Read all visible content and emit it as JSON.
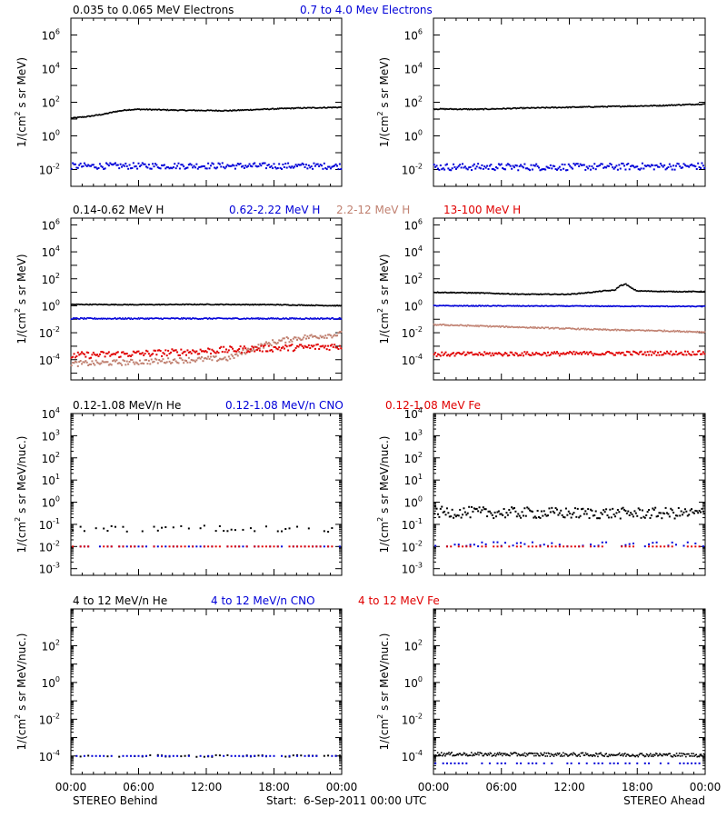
{
  "colors": {
    "black": "#000000",
    "blue": "#0000d8",
    "tan": "#c08070",
    "red": "#e00000"
  },
  "footer": {
    "left": "STEREO Behind",
    "center": "Start:  6-Sep-2011 00:00 UTC",
    "right": "STEREO Ahead"
  },
  "chart_data": [
    {
      "type": "scatter",
      "row": "electrons",
      "yscale": "log",
      "ylim_exp": [
        -3,
        7
      ],
      "ylabel_main": "1/(cm",
      "ylabel_tail": " s sr MeV)",
      "legend": [
        {
          "text": "0.035 to 0.065 MeV Electrons",
          "color": "black"
        },
        {
          "text": "0.7 to 4.0 Mev Electrons",
          "color": "blue"
        }
      ],
      "x_ticks": [
        "00:00",
        "06:00",
        "12:00",
        "18:00",
        "00:00"
      ],
      "y_ticks": [
        {
          "exp": 6,
          "label": "6"
        },
        {
          "exp": 4,
          "label": "4"
        },
        {
          "exp": 2,
          "label": "2"
        },
        {
          "exp": 0,
          "label": "0"
        },
        {
          "exp": -2,
          "label": "-2"
        }
      ],
      "panels": [
        {
          "name": "STEREO Behind",
          "series": [
            {
              "color": "black",
              "style": "dense",
              "noise": 0.03,
              "x": [
                0,
                1.5,
                3,
                4,
                5,
                6,
                8,
                10,
                14,
                17,
                20,
                24
              ],
              "logy": [
                1.05,
                1.15,
                1.3,
                1.45,
                1.55,
                1.58,
                1.55,
                1.52,
                1.5,
                1.58,
                1.65,
                1.7
              ]
            },
            {
              "color": "blue",
              "style": "scatter",
              "noise": 0.18,
              "x": [
                0,
                12,
                24
              ],
              "logy": [
                -1.8,
                -1.78,
                -1.8
              ]
            }
          ]
        },
        {
          "name": "STEREO Ahead",
          "series": [
            {
              "color": "black",
              "style": "dense",
              "noise": 0.03,
              "x": [
                0,
                4,
                8,
                12,
                16,
                20,
                24
              ],
              "logy": [
                1.6,
                1.58,
                1.65,
                1.7,
                1.75,
                1.8,
                1.9
              ]
            },
            {
              "color": "blue",
              "style": "scatter",
              "noise": 0.2,
              "x": [
                0,
                12,
                24
              ],
              "logy": [
                -1.85,
                -1.85,
                -1.8
              ]
            }
          ]
        }
      ]
    },
    {
      "type": "scatter",
      "row": "protons",
      "yscale": "log",
      "ylim_exp": [
        -5.5,
        6.5
      ],
      "ylabel_main": "1/(cm",
      "ylabel_tail": " s sr MeV)",
      "legend": [
        {
          "text": "0.14-0.62 MeV H",
          "color": "black"
        },
        {
          "text": "0.62-2.22 MeV H",
          "color": "blue"
        },
        {
          "text": "2.2-12 MeV H",
          "color": "tan"
        },
        {
          "text": "13-100 MeV H",
          "color": "red"
        }
      ],
      "x_ticks": [
        "00:00",
        "06:00",
        "12:00",
        "18:00",
        "00:00"
      ],
      "y_ticks": [
        {
          "exp": 6,
          "label": "6"
        },
        {
          "exp": 4,
          "label": "4"
        },
        {
          "exp": 2,
          "label": "2"
        },
        {
          "exp": 0,
          "label": "0"
        },
        {
          "exp": -2,
          "label": "-2"
        },
        {
          "exp": -4,
          "label": "-4"
        }
      ],
      "panels": [
        {
          "name": "STEREO Behind",
          "series": [
            {
              "color": "black",
              "style": "dense",
              "noise": 0.03,
              "x": [
                0,
                6,
                12,
                18,
                24
              ],
              "logy": [
                0.1,
                0.08,
                0.1,
                0.08,
                0.0
              ]
            },
            {
              "color": "blue",
              "style": "dense",
              "noise": 0.05,
              "x": [
                0,
                24
              ],
              "logy": [
                -0.95,
                -0.95
              ]
            },
            {
              "color": "tan",
              "style": "scatter",
              "noise": 0.2,
              "x": [
                0,
                5,
                11,
                14,
                16,
                18,
                20,
                24
              ],
              "logy": [
                -4.3,
                -4.2,
                -4.0,
                -3.9,
                -3.2,
                -2.7,
                -2.4,
                -2.1
              ]
            },
            {
              "color": "red",
              "style": "scatter",
              "noise": 0.25,
              "x": [
                0,
                8,
                16,
                24
              ],
              "logy": [
                -3.7,
                -3.5,
                -3.2,
                -3.0
              ]
            }
          ]
        },
        {
          "name": "STEREO Ahead",
          "series": [
            {
              "color": "black",
              "style": "dense",
              "noise": 0.03,
              "x": [
                0,
                4,
                8,
                12,
                14,
                15,
                16,
                16.5,
                17,
                17.5,
                18,
                21,
                24
              ],
              "logy": [
                1.0,
                0.95,
                0.85,
                0.85,
                1.0,
                1.1,
                1.15,
                1.5,
                1.6,
                1.3,
                1.1,
                1.05,
                1.05
              ]
            },
            {
              "color": "blue",
              "style": "dense",
              "noise": 0.03,
              "x": [
                0,
                24
              ],
              "logy": [
                0.0,
                -0.05
              ]
            },
            {
              "color": "tan",
              "style": "dense",
              "noise": 0.05,
              "x": [
                0,
                4,
                8,
                12,
                16,
                20,
                24
              ],
              "logy": [
                -1.4,
                -1.5,
                -1.6,
                -1.7,
                -1.8,
                -1.85,
                -1.95
              ]
            },
            {
              "color": "red",
              "style": "scatter",
              "noise": 0.15,
              "x": [
                0,
                12,
                24
              ],
              "logy": [
                -3.6,
                -3.55,
                -3.5
              ]
            }
          ]
        }
      ]
    },
    {
      "type": "scatter",
      "row": "heavy-low",
      "yscale": "log",
      "ylim_exp": [
        -3.3,
        4
      ],
      "ylabel_main": "1/(cm",
      "ylabel_tail": " s sr MeV/nuc.)",
      "legend": [
        {
          "text": "0.12-1.08 MeV/n He",
          "color": "black"
        },
        {
          "text": "0.12-1.08 MeV/n CNO",
          "color": "blue"
        },
        {
          "text": "0.12-1.08 MeV Fe",
          "color": "red"
        }
      ],
      "x_ticks": [
        "00:00",
        "06:00",
        "12:00",
        "18:00",
        "00:00"
      ],
      "y_ticks": [
        {
          "exp": 4,
          "label": "4"
        },
        {
          "exp": 3,
          "label": "3"
        },
        {
          "exp": 2,
          "label": "2"
        },
        {
          "exp": 1,
          "label": "1"
        },
        {
          "exp": 0,
          "label": "0"
        },
        {
          "exp": -1,
          "label": "-1"
        },
        {
          "exp": -2,
          "label": "-2"
        },
        {
          "exp": -3,
          "label": "-3"
        }
      ],
      "panels": [
        {
          "name": "STEREO Behind",
          "series": [
            {
              "color": "black",
              "style": "sparse",
              "noise": 0.15,
              "x": [
                0,
                24
              ],
              "logy": [
                -1.2,
                -1.2
              ]
            },
            {
              "color": "blue",
              "style": "sparse",
              "noise": 0.0,
              "x": [
                0,
                24
              ],
              "logy": [
                -2.0,
                -2.0
              ]
            },
            {
              "color": "red",
              "style": "sparse",
              "noise": 0.0,
              "x": [
                0,
                24
              ],
              "logy": [
                -2.0,
                -2.0
              ]
            }
          ]
        },
        {
          "name": "STEREO Ahead",
          "series": [
            {
              "color": "black",
              "style": "scatter",
              "noise": 0.25,
              "x": [
                0,
                12,
                24
              ],
              "logy": [
                -0.45,
                -0.5,
                -0.5
              ]
            },
            {
              "color": "blue",
              "style": "sparse",
              "noise": 0.1,
              "x": [
                0,
                24
              ],
              "logy": [
                -1.9,
                -1.9
              ]
            },
            {
              "color": "red",
              "style": "sparse",
              "noise": 0.0,
              "x": [
                0,
                24
              ],
              "logy": [
                -2.0,
                -2.0
              ]
            }
          ]
        }
      ]
    },
    {
      "type": "scatter",
      "row": "heavy-high",
      "yscale": "log",
      "ylim_exp": [
        -5,
        4
      ],
      "ylabel_main": "1/(cm",
      "ylabel_tail": " s sr MeV/nuc.)",
      "legend": [
        {
          "text": "4 to 12 MeV/n He",
          "color": "black"
        },
        {
          "text": "4 to 12 MeV/n CNO",
          "color": "blue"
        },
        {
          "text": "4 to 12 MeV Fe",
          "color": "red"
        }
      ],
      "x_ticks": [
        "00:00",
        "06:00",
        "12:00",
        "18:00",
        "00:00"
      ],
      "y_ticks": [
        {
          "exp": 2,
          "label": "2"
        },
        {
          "exp": 0,
          "label": "0"
        },
        {
          "exp": -2,
          "label": "-2"
        },
        {
          "exp": -4,
          "label": "-4"
        }
      ],
      "panels": [
        {
          "name": "STEREO Behind",
          "series": [
            {
              "color": "black",
              "style": "sparse",
              "noise": 0.05,
              "x": [
                0,
                24
              ],
              "logy": [
                -4.0,
                -4.0
              ]
            },
            {
              "color": "blue",
              "style": "sparse",
              "noise": 0.0,
              "x": [
                0,
                24
              ],
              "logy": [
                -4.0,
                -4.0
              ]
            }
          ]
        },
        {
          "name": "STEREO Ahead",
          "series": [
            {
              "color": "black",
              "style": "dense",
              "noise": 0.1,
              "x": [
                0,
                24
              ],
              "logy": [
                -3.9,
                -3.95
              ]
            },
            {
              "color": "blue",
              "style": "sparse",
              "noise": 0.0,
              "x": [
                0,
                24
              ],
              "logy": [
                -4.4,
                -4.4
              ]
            }
          ]
        }
      ]
    }
  ]
}
